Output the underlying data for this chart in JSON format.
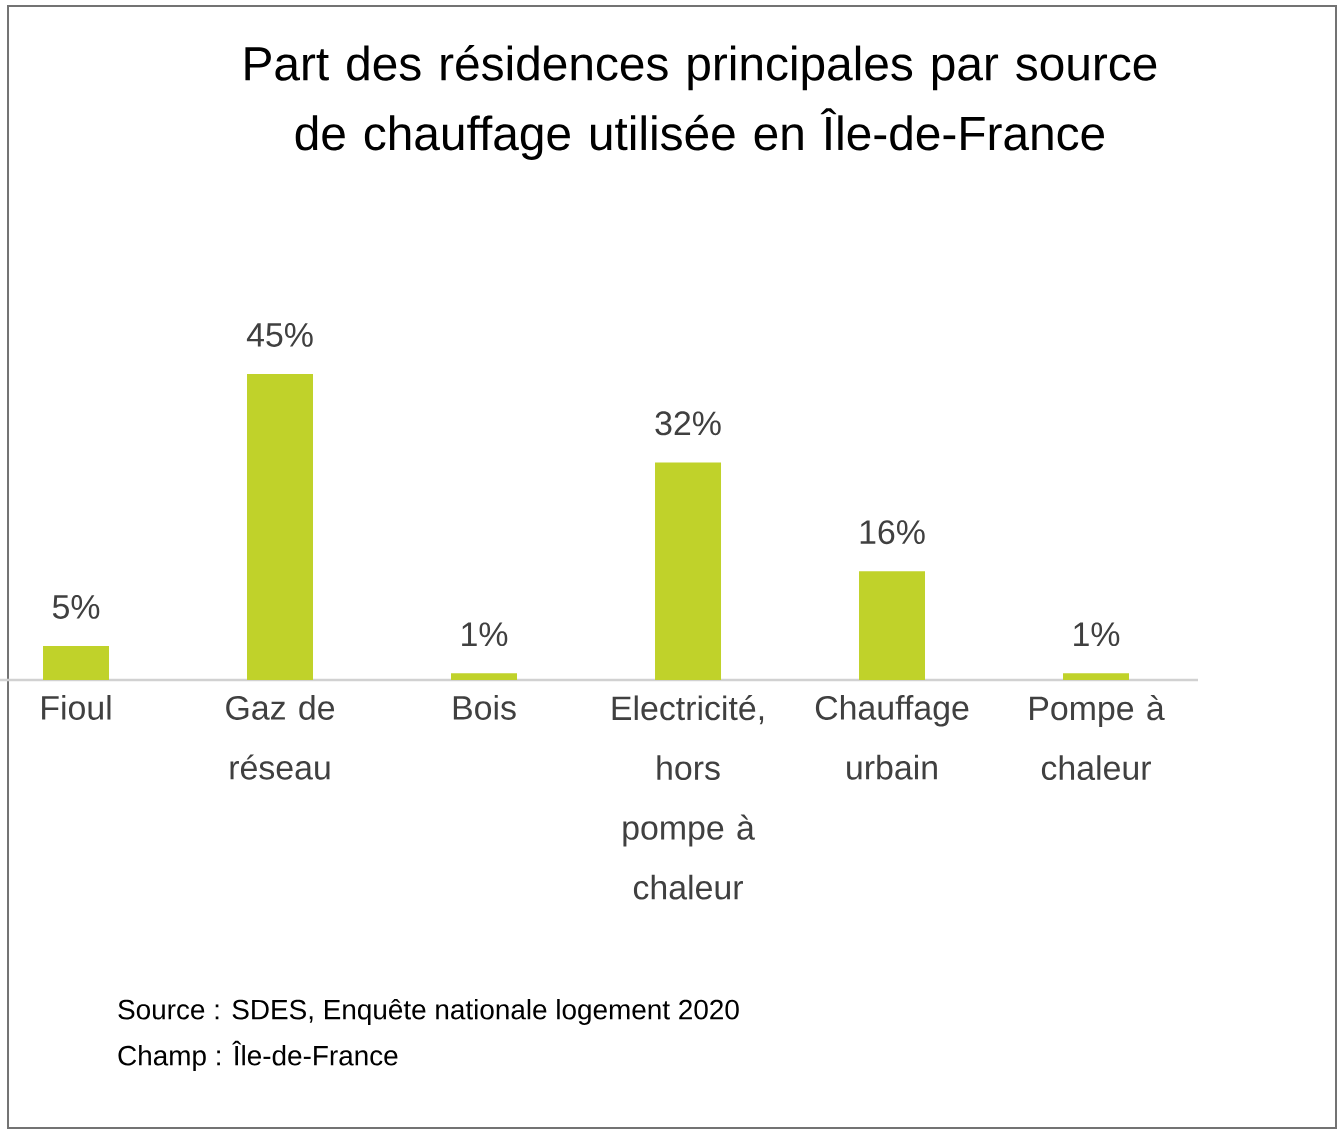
{
  "chart_data": {
    "type": "bar",
    "title": "Part des résidences principales par source de chauffage utilisée en Île-de-France",
    "categories": [
      "Fioul",
      "Gaz de réseau",
      "Bois",
      "Electricité, hors pompe à chaleur",
      "Chauffage urbain",
      "Pompe à chaleur"
    ],
    "values": [
      5,
      45,
      1,
      32,
      16,
      1
    ],
    "value_labels": [
      "5%",
      "45%",
      "1%",
      "32%",
      "16%",
      "1%"
    ],
    "color": "#c0d22a",
    "annotations": [
      "Source : SDES, Enquête nationale logement 2020",
      "Champ : Île-de-France"
    ]
  }
}
